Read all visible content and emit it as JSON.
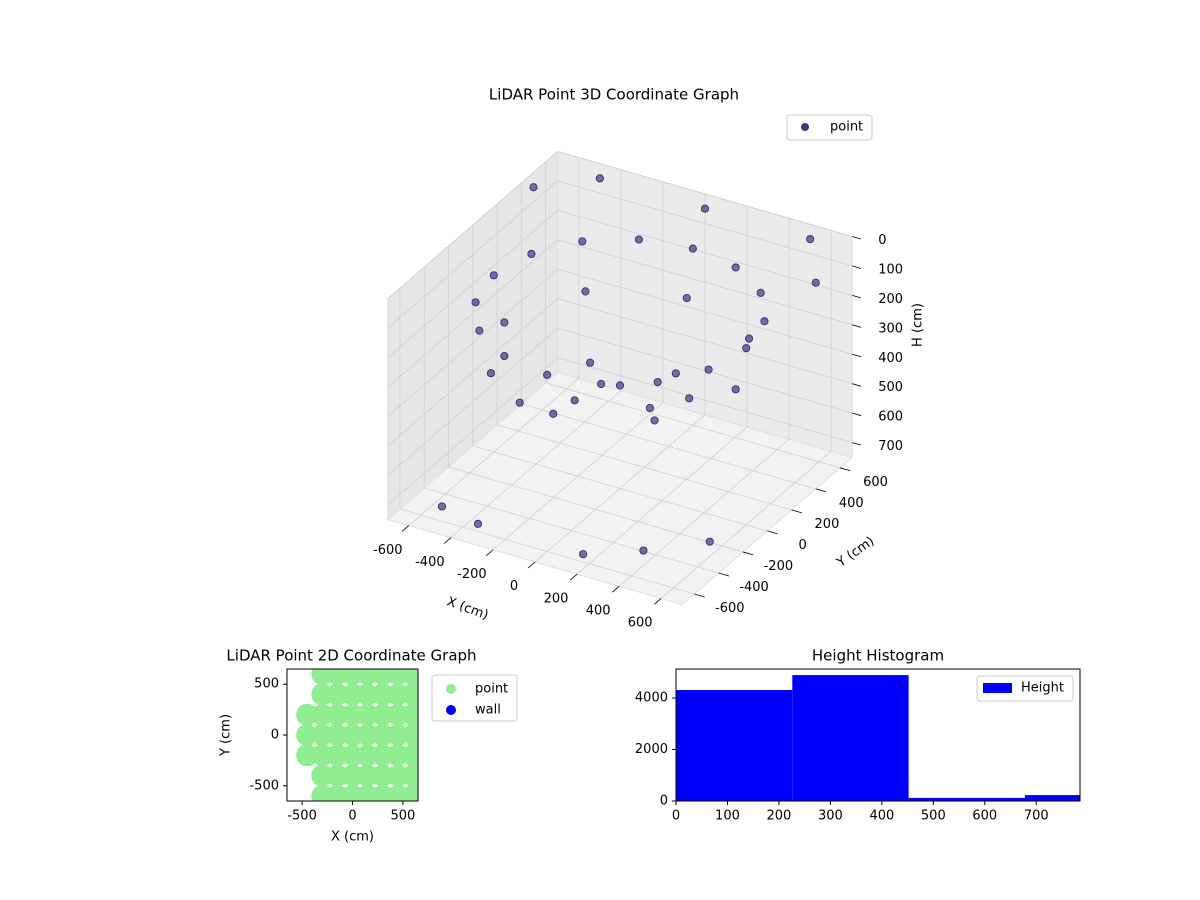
{
  "chart_data": [
    {
      "type": "scatter3d",
      "title": "LiDAR Point 3D Coordinate Graph",
      "xlabel": "X (cm)",
      "ylabel": "Y (cm)",
      "zlabel": "H (cm)",
      "xlim": [
        -700,
        700
      ],
      "ylim": [
        -700,
        700
      ],
      "zlim": [
        0,
        750
      ],
      "z_inverted": true,
      "xticks": [
        -600,
        -400,
        -200,
        0,
        200,
        400,
        600
      ],
      "yticks": [
        -600,
        -400,
        -200,
        0,
        200,
        400,
        600
      ],
      "zticks": [
        0,
        100,
        200,
        300,
        400,
        500,
        600,
        700
      ],
      "legend": "upper right",
      "grid": true,
      "series": [
        {
          "name": "point",
          "color": "#46337e",
          "x": [
            600,
            554,
            424,
            230,
            0,
            -230,
            -424,
            -554,
            -600,
            -554,
            -424,
            -230,
            0,
            230,
            424,
            554,
            550,
            389,
            0,
            -389,
            -550,
            -389,
            0,
            389,
            -200,
            0,
            200,
            -100,
            150,
            300,
            -500,
            200,
            600,
            -650,
            400,
            -300,
            -700,
            -500,
            0,
            500,
            700
          ],
          "y": [
            0,
            230,
            424,
            554,
            600,
            554,
            424,
            230,
            0,
            -230,
            -424,
            -554,
            -600,
            -554,
            -424,
            -230,
            0,
            389,
            550,
            389,
            0,
            -389,
            -550,
            -389,
            100,
            0,
            -100,
            -200,
            200,
            50,
            -600,
            -650,
            -300,
            300,
            -500,
            -650,
            500,
            700,
            700,
            700,
            400
          ],
          "z": [
            150,
            150,
            150,
            150,
            150,
            150,
            150,
            150,
            150,
            150,
            150,
            150,
            150,
            150,
            150,
            150,
            300,
            300,
            300,
            300,
            300,
            300,
            300,
            300,
            400,
            400,
            400,
            400,
            400,
            400,
            700,
            700,
            700,
            700,
            700,
            700,
            50,
            50,
            50,
            50,
            50
          ]
        }
      ]
    },
    {
      "type": "scatter",
      "title": "LiDAR Point 2D Coordinate Graph",
      "xlabel": "X (cm)",
      "ylabel": "Y (cm)",
      "xlim": [
        -650,
        650
      ],
      "ylim": [
        -650,
        650
      ],
      "xticks": [
        -500,
        0,
        500
      ],
      "yticks": [
        -500,
        0,
        500
      ],
      "legend": "outside right",
      "series": [
        {
          "name": "point",
          "color": "#90ee90",
          "x": [
            -450,
            -450,
            -450,
            -300,
            -300,
            -300,
            -300,
            -300,
            -300,
            -300,
            -150,
            -150,
            -150,
            -150,
            -150,
            -150,
            -150,
            0,
            0,
            0,
            0,
            0,
            0,
            0,
            150,
            150,
            150,
            150,
            150,
            150,
            150,
            300,
            300,
            300,
            300,
            300,
            300,
            300,
            450,
            450,
            450,
            450,
            450,
            450,
            450,
            600,
            600,
            600,
            600,
            600,
            600,
            600
          ],
          "y": [
            -200,
            0,
            200,
            -600,
            -400,
            -200,
            0,
            200,
            400,
            600,
            -600,
            -400,
            -200,
            0,
            200,
            400,
            600,
            -600,
            -400,
            -200,
            0,
            200,
            400,
            600,
            -600,
            -400,
            -200,
            0,
            200,
            400,
            600,
            -600,
            -400,
            -200,
            0,
            200,
            400,
            600,
            -600,
            -400,
            -200,
            0,
            200,
            400,
            600,
            -600,
            -400,
            -200,
            0,
            200,
            400,
            600
          ]
        },
        {
          "name": "wall",
          "color": "#0000ff",
          "x": [],
          "y": []
        }
      ]
    },
    {
      "type": "histogram",
      "title": "Height Histogram",
      "bins": [
        0,
        226,
        452,
        678,
        785
      ],
      "counts": [
        4310,
        4890,
        120,
        230
      ],
      "xlim": [
        0,
        785
      ],
      "ylim": [
        0,
        5126
      ],
      "xticks": [
        0,
        100,
        200,
        300,
        400,
        500,
        600,
        700
      ],
      "yticks": [
        0,
        2000,
        4000
      ],
      "legend": "upper right",
      "series_name": "Height",
      "color": "#0000ff"
    }
  ]
}
